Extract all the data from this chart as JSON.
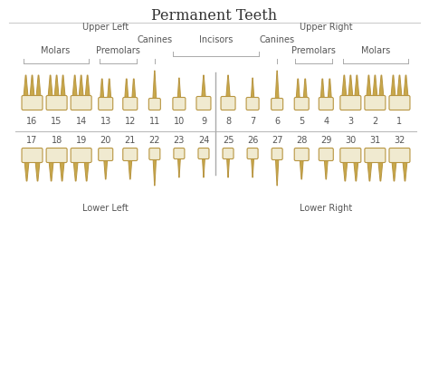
{
  "title": "Permanent Teeth",
  "bg_color": "#ffffff",
  "tooth_gold": "#c8a84b",
  "tooth_gold_light": "#d4b96a",
  "tooth_cream": "#f0ead0",
  "tooth_outline": "#b89540",
  "text_color": "#555555",
  "line_color": "#aaaaaa",
  "divider_color": "#999999",
  "title_color": "#333333",
  "upper_left_nums": [
    16,
    15,
    14,
    13,
    12,
    11,
    10,
    9
  ],
  "upper_right_nums": [
    8,
    7,
    6,
    5,
    4,
    3,
    2,
    1
  ],
  "lower_left_nums": [
    17,
    18,
    19,
    20,
    21,
    22,
    23,
    24
  ],
  "lower_right_nums": [
    25,
    26,
    27,
    28,
    29,
    30,
    31,
    32
  ],
  "label_upper_left": "Upper Left",
  "label_upper_right": "Upper Right",
  "label_lower_left": "Lower Left",
  "label_lower_right": "Lower Right",
  "label_canines_left": "Canines",
  "label_canines_right": "Canines",
  "label_premolars_left": "Premolars",
  "label_premolars_right": "Premolars",
  "label_molars_left": "Molars",
  "label_molars_right": "Molars",
  "label_incisors": "Incisors"
}
